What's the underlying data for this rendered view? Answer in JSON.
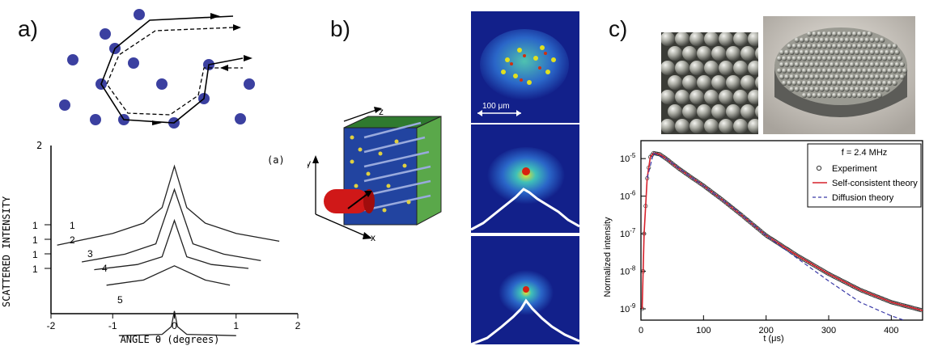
{
  "panels": {
    "a": {
      "label": "a)",
      "inset_label": "(a)",
      "ylabel": "SCATTERED INTENSITY",
      "xlabel": "ANGLE θ (degrees)",
      "y_top_tick": "2",
      "curve_ticks": [
        "1",
        "1",
        "1",
        "1"
      ],
      "curve_labels": [
        "1",
        "2",
        "3",
        "4",
        "5"
      ],
      "x_ticks": [
        "-2",
        "-1",
        "0",
        "1",
        "2"
      ]
    },
    "b": {
      "label": "b)",
      "axes": {
        "x": "x",
        "y": "y",
        "z": "z"
      },
      "scale_bar": "100 μm"
    },
    "c": {
      "label": "c)",
      "legend_title": "f = 2.4 MHz",
      "ylabel": "Normalized intensity",
      "xlabel": "t (μs)"
    }
  },
  "chart_data": [
    {
      "type": "line",
      "title": "",
      "xlabel": "ANGLE θ (degrees)",
      "ylabel": "SCATTERED INTENSITY",
      "xlim": [
        -2,
        2
      ],
      "series": [
        {
          "x": [
            -1.9,
            -1.0,
            -0.5,
            -0.2,
            0.0,
            0.2,
            0.5,
            1.0,
            1.7
          ],
          "values": [
            0.23,
            0.32,
            0.4,
            0.52,
            0.84,
            0.52,
            0.4,
            0.32,
            0.26
          ]
        },
        {
          "x": [
            -1.5,
            -0.8,
            -0.3,
            0.0,
            0.3,
            0.8,
            1.4
          ],
          "values": [
            0.1,
            0.16,
            0.24,
            0.66,
            0.24,
            0.16,
            0.11
          ]
        },
        {
          "x": [
            -1.3,
            -0.6,
            -0.2,
            0.0,
            0.2,
            0.6,
            1.2
          ],
          "values": [
            0.04,
            0.08,
            0.14,
            0.42,
            0.14,
            0.08,
            0.05
          ]
        },
        {
          "x": [
            -1.1,
            -0.5,
            0.0,
            0.5,
            0.9
          ],
          "values": [
            -0.08,
            -0.04,
            0.07,
            -0.04,
            -0.08
          ]
        },
        {
          "x": [
            -0.9,
            -0.2,
            -0.05,
            0.0,
            0.05,
            0.2,
            1.0
          ],
          "values": [
            -0.47,
            -0.46,
            -0.4,
            -0.28,
            -0.4,
            -0.46,
            -0.47
          ]
        }
      ]
    },
    {
      "type": "line",
      "title": "",
      "xlabel": "t (μs)",
      "ylabel": "Normalized intensity",
      "xlim": [
        0,
        450
      ],
      "ylim": [
        5e-10,
        3e-05
      ],
      "log_y": true,
      "x_ticks": [
        "0",
        "100",
        "200",
        "300",
        "400"
      ],
      "y_ticks": [
        "10-9",
        "10-8",
        "10-7",
        "10-6",
        "10-5"
      ],
      "legend_position": "top-right",
      "series": [
        {
          "name": "Experiment",
          "style": "open-circles",
          "color": "#333333",
          "x": [
            2,
            5,
            10,
            15,
            20,
            30,
            40,
            60,
            80,
            100,
            130,
            160,
            200,
            250,
            300,
            350,
            400,
            450
          ],
          "values": [
            1e-09,
            1e-07,
            3e-06,
            1.1e-05,
            1.4e-05,
            1.3e-05,
            1e-05,
            5.5e-06,
            3.2e-06,
            1.9e-06,
            8e-07,
            3.2e-07,
            9e-08,
            2.6e-08,
            8.5e-09,
            3.2e-09,
            1.5e-09,
            9e-10
          ]
        },
        {
          "name": "Self-consistent theory",
          "style": "solid",
          "color": "#d6202b",
          "x": [
            2,
            5,
            10,
            15,
            20,
            30,
            40,
            60,
            80,
            100,
            130,
            160,
            200,
            250,
            300,
            350,
            400,
            450
          ],
          "values": [
            1e-09,
            1e-07,
            3e-06,
            1.1e-05,
            1.4e-05,
            1.3e-05,
            1e-05,
            5.5e-06,
            3.2e-06,
            1.9e-06,
            8e-07,
            3.2e-07,
            9e-08,
            2.6e-08,
            8.5e-09,
            3.2e-09,
            1.5e-09,
            9e-10
          ]
        },
        {
          "name": "Diffusion theory",
          "style": "dashed",
          "color": "#3a3aa8",
          "x": [
            10,
            20,
            40,
            80,
            100,
            150,
            200,
            250,
            300,
            350,
            400,
            420
          ],
          "values": [
            3e-06,
            1.4e-05,
            1e-05,
            3.2e-06,
            1.9e-06,
            4.5e-07,
            9e-08,
            2.2e-08,
            5.5e-09,
            1.5e-09,
            6.5e-10,
            5e-10
          ]
        }
      ]
    }
  ]
}
